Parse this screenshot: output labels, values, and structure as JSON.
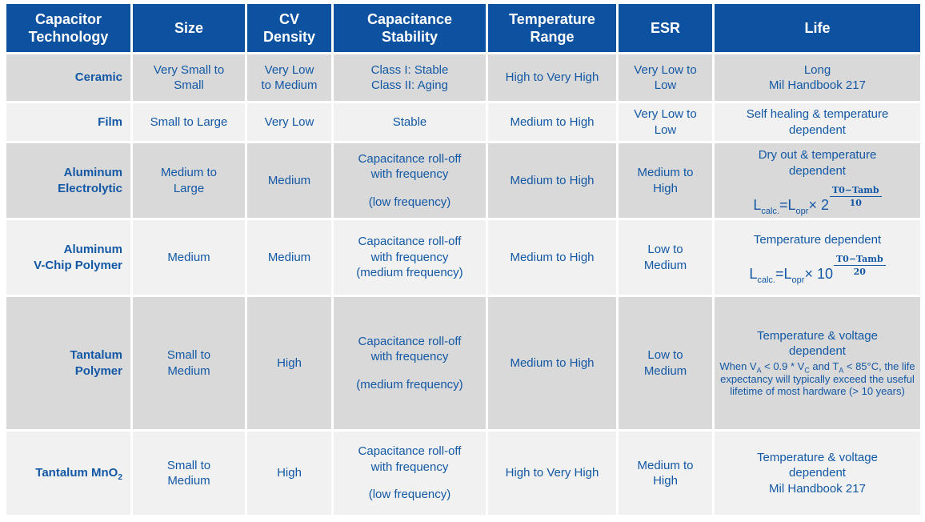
{
  "title": "Capacitor Technology Comparison",
  "colors": {
    "header_bg": "#0D52A0",
    "text": "#1358A5",
    "row_dark": "#D9D9D9",
    "row_light": "#F1F1F1",
    "grid": "#FFFFFF"
  },
  "table": {
    "columns": [
      {
        "label": "Capacitor\nTechnology"
      },
      {
        "label": "Size"
      },
      {
        "label": "CV\nDensity"
      },
      {
        "label": "Capacitance\nStability"
      },
      {
        "label": "Temperature\nRange"
      },
      {
        "label": "ESR"
      },
      {
        "label": "Life"
      }
    ],
    "rows": [
      {
        "shade": "dark",
        "technology": [
          {
            "text": "Ceramic"
          }
        ],
        "size": [
          {
            "text": "Very Small to"
          },
          {
            "text": "Small"
          }
        ],
        "cv_density": [
          {
            "text": "Very Low"
          },
          {
            "text": "to Medium"
          }
        ],
        "capacitance_stability": [
          {
            "text": "Class I: Stable"
          },
          {
            "text": "Class II: Aging"
          }
        ],
        "temperature_range": [
          {
            "text": "High to Very High"
          }
        ],
        "esr": [
          {
            "text": "Very Low to"
          },
          {
            "text": "Low"
          }
        ],
        "life": [
          {
            "text": "Long"
          },
          {
            "text": "Mil Handbook 217"
          }
        ]
      },
      {
        "shade": "light",
        "technology": [
          {
            "text": "Film"
          }
        ],
        "size": [
          {
            "text": "Small to Large"
          }
        ],
        "cv_density": [
          {
            "text": "Very Low"
          }
        ],
        "capacitance_stability": [
          {
            "text": "Stable"
          }
        ],
        "temperature_range": [
          {
            "text": "Medium to High"
          }
        ],
        "esr": [
          {
            "text": "Very Low to"
          },
          {
            "text": "Low"
          }
        ],
        "life": [
          {
            "text": "Self healing & temperature"
          },
          {
            "text": "dependent"
          }
        ]
      },
      {
        "shade": "dark",
        "technology": [
          {
            "text": "Aluminum"
          },
          {
            "text": "Electrolytic"
          }
        ],
        "size": [
          {
            "text": "Medium to"
          },
          {
            "text": "Large"
          }
        ],
        "cv_density": [
          {
            "text": "Medium"
          }
        ],
        "capacitance_stability": [
          {
            "text": "Capacitance roll-off"
          },
          {
            "text": "with frequency"
          },
          {
            "gap": true
          },
          {
            "text": "(low frequency)"
          }
        ],
        "temperature_range": [
          {
            "text": "Medium to High"
          }
        ],
        "esr": [
          {
            "text": "Medium to"
          },
          {
            "text": "High"
          }
        ],
        "life": [
          {
            "text": "Dry out & temperature"
          },
          {
            "text": "dependent"
          },
          {
            "formula": {
              "lhs": "L",
              "lhs_sub": "calc.",
              "eq": "=L",
              "eq_sub": "opr",
              "mul": "×",
              "base": "2",
              "num": "T0−Tamb",
              "den": "10"
            }
          }
        ]
      },
      {
        "shade": "light",
        "technology": [
          {
            "text": "Aluminum"
          },
          {
            "text": "V-Chip Polymer"
          }
        ],
        "size": [
          {
            "text": "Medium"
          }
        ],
        "cv_density": [
          {
            "text": "Medium"
          }
        ],
        "capacitance_stability": [
          {
            "text": "Capacitance roll-off"
          },
          {
            "text": "with frequency"
          },
          {
            "text": "(medium frequency)"
          }
        ],
        "temperature_range": [
          {
            "text": "Medium to High"
          }
        ],
        "esr": [
          {
            "text": "Low to"
          },
          {
            "text": "Medium"
          }
        ],
        "life": [
          {
            "text": "Temperature dependent"
          },
          {
            "formula": {
              "lhs": "L",
              "lhs_sub": "calc.",
              "eq": "=L",
              "eq_sub": "opr",
              "mul": "×",
              "base": "10",
              "num": "T0−Tamb",
              "den": "20"
            }
          }
        ]
      },
      {
        "shade": "dark",
        "technology": [
          {
            "text": "Tantalum"
          },
          {
            "text": "Polymer"
          }
        ],
        "size": [
          {
            "text": "Small to"
          },
          {
            "text": "Medium"
          }
        ],
        "cv_density": [
          {
            "text": "High"
          }
        ],
        "capacitance_stability": [
          {
            "text": "Capacitance roll-off"
          },
          {
            "text": "with frequency"
          },
          {
            "gap": true
          },
          {
            "text": "(medium frequency)"
          }
        ],
        "temperature_range": [
          {
            "text": "Medium to High"
          }
        ],
        "esr": [
          {
            "text": "Low to"
          },
          {
            "text": "Medium"
          }
        ],
        "life": [
          {
            "text": "Temperature & voltage"
          },
          {
            "text": "dependent"
          },
          {
            "note": "When V_{A} < 0.9 * V_{C} and T_{A} < 85°C, the life expectancy will typically exceed the useful lifetime of most hardware (> 10 years)"
          }
        ]
      },
      {
        "shade": "light",
        "technology": [
          {
            "text": "Tantalum MnO_{2}"
          }
        ],
        "size": [
          {
            "text": "Small to"
          },
          {
            "text": "Medium"
          }
        ],
        "cv_density": [
          {
            "text": "High"
          }
        ],
        "capacitance_stability": [
          {
            "text": "Capacitance roll-off"
          },
          {
            "text": "with frequency"
          },
          {
            "gap": true
          },
          {
            "text": "(low frequency)"
          }
        ],
        "temperature_range": [
          {
            "text": "High to Very High"
          }
        ],
        "esr": [
          {
            "text": "Medium to"
          },
          {
            "text": "High"
          }
        ],
        "life": [
          {
            "text": "Temperature & voltage"
          },
          {
            "text": "dependent"
          },
          {
            "text": "Mil Handbook 217"
          }
        ]
      }
    ]
  }
}
